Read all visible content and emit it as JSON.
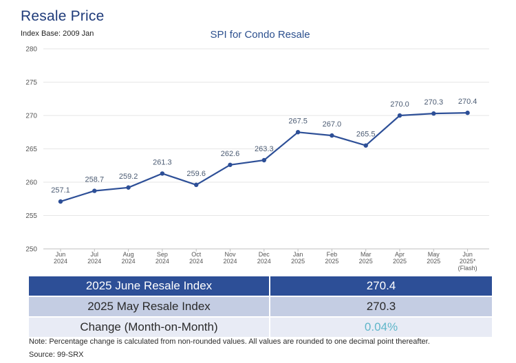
{
  "header": {
    "title": "Resale Price",
    "index_base": "Index Base: 2009 Jan"
  },
  "chart_data": {
    "type": "line",
    "title": "SPI for Condo Resale",
    "categories": [
      [
        "Jun",
        "2024"
      ],
      [
        "Jul",
        "2024"
      ],
      [
        "Aug",
        "2024"
      ],
      [
        "Sep",
        "2024"
      ],
      [
        "Oct",
        "2024"
      ],
      [
        "Nov",
        "2024"
      ],
      [
        "Dec",
        "2024"
      ],
      [
        "Jan",
        "2025"
      ],
      [
        "Feb",
        "2025"
      ],
      [
        "Mar",
        "2025"
      ],
      [
        "Apr",
        "2025"
      ],
      [
        "May",
        "2025"
      ],
      [
        "Jun",
        "2025*",
        "(Flash)"
      ]
    ],
    "series": [
      {
        "name": "SPI for Condo Resale",
        "values": [
          257.1,
          258.7,
          259.2,
          261.3,
          259.6,
          262.6,
          263.3,
          267.5,
          267.0,
          265.5,
          270.0,
          270.3,
          270.4
        ],
        "labels": [
          "257.1",
          "258.7",
          "259.2",
          "261.3",
          "259.6",
          "262.6",
          "263.3",
          "267.5",
          "267.0",
          "265.5",
          "270.0",
          "270.3",
          "270.4"
        ]
      }
    ],
    "ylim": [
      250,
      280
    ],
    "yticks": [
      250,
      255,
      260,
      265,
      270,
      275,
      280
    ],
    "grid": true,
    "colors": {
      "line": "#2d4f97",
      "grid": "#e6e6e6",
      "axis": "#bfbfbf"
    }
  },
  "summary": {
    "rows": [
      {
        "label": "2025 June Resale Index",
        "value": "270.4"
      },
      {
        "label": "2025 May Resale Index",
        "value": "270.3"
      },
      {
        "label": "Change (Month-on-Month)",
        "value": "0.04%"
      }
    ]
  },
  "footer": {
    "note": "Note: Percentage change is calculated from non-rounded values.  All values are rounded to one decimal point thereafter.",
    "source": "Source: 99-SRX"
  }
}
